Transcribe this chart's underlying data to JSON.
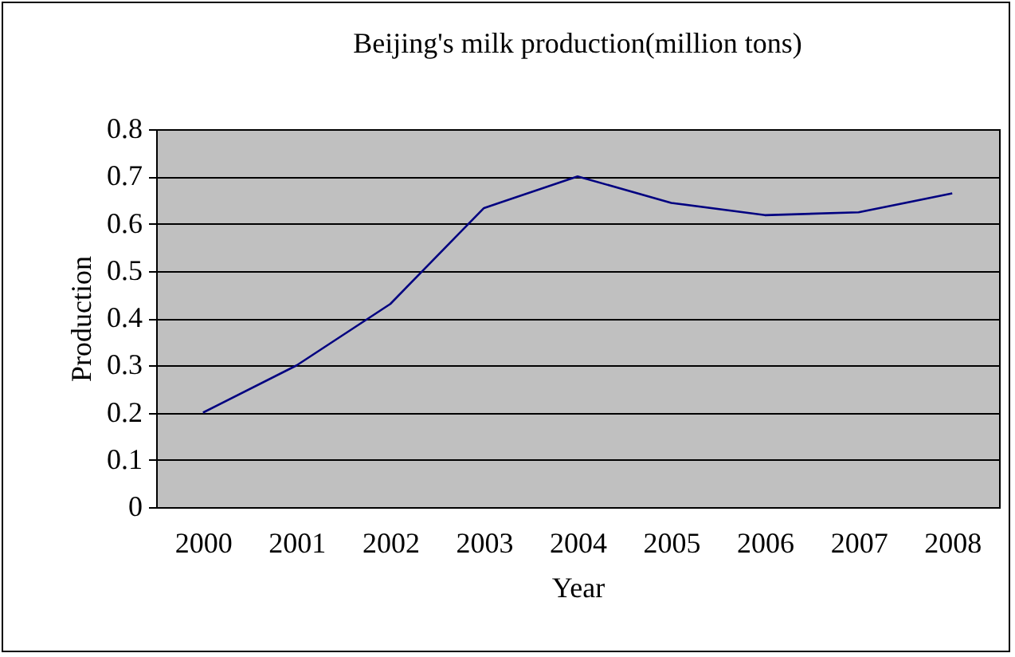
{
  "chart_data": {
    "type": "line",
    "title": "Beijing's milk production(million tons)",
    "xlabel": "Year",
    "ylabel": "Production",
    "categories": [
      "2000",
      "2001",
      "2002",
      "2003",
      "2004",
      "2005",
      "2006",
      "2007",
      "2008"
    ],
    "series": [
      {
        "color": "#000080",
        "values": [
          0.2,
          0.3,
          0.43,
          0.633,
          0.7,
          0.644,
          0.618,
          0.624,
          0.664
        ]
      }
    ],
    "ylim": [
      0,
      0.8
    ],
    "yticks": [
      0,
      0.1,
      0.2,
      0.3,
      0.4,
      0.5,
      0.6,
      0.7,
      0.8
    ],
    "grid": "y",
    "marker": "none",
    "line_style": "solid"
  }
}
